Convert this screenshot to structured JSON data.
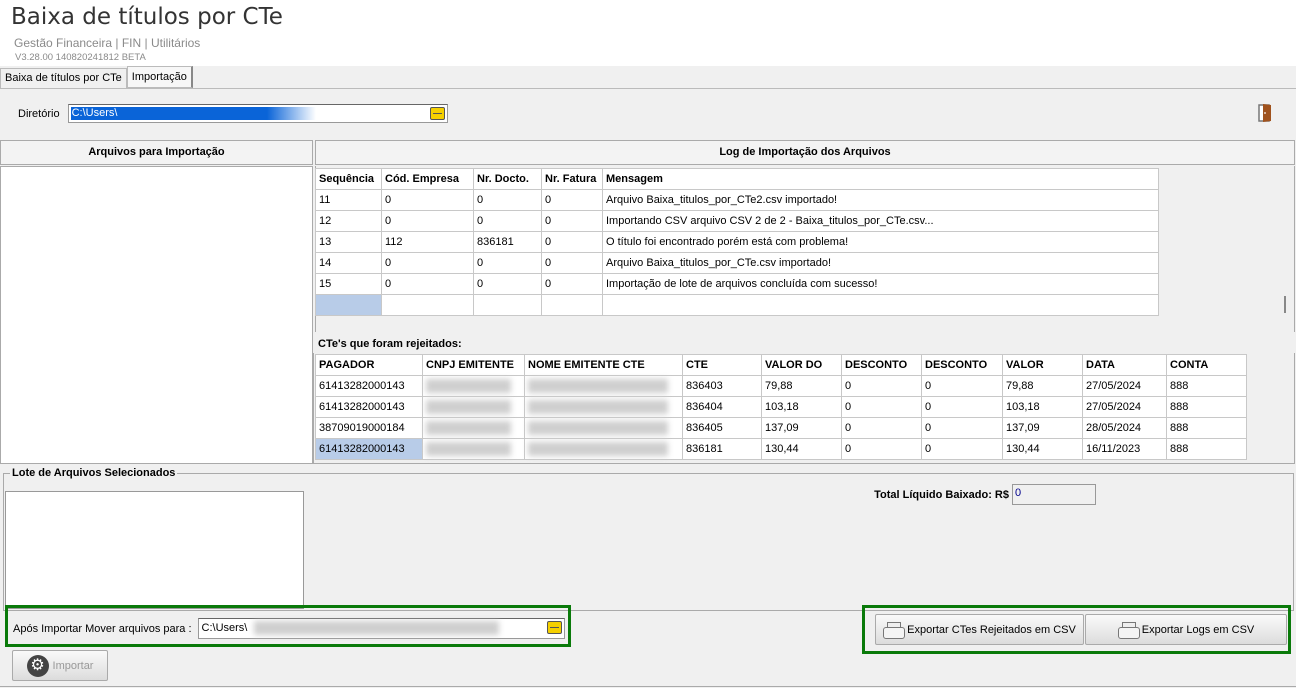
{
  "header": {
    "title": "Baixa de títulos por CTe",
    "subtitle": "Gestão Financeira | FIN | Utilitários",
    "version": "V3.28.00 140820241812 BETA"
  },
  "tabs": [
    {
      "label": "Baixa de títulos por CTe"
    },
    {
      "label": "Importação",
      "active": true
    }
  ],
  "directory": {
    "label": "Diretório",
    "value": "C:\\Users\\"
  },
  "panels": {
    "files_title": "Arquivos para Importação",
    "log_title": "Log de Importação dos Arquivos"
  },
  "log": {
    "columns": [
      "Sequência",
      "Cód. Empresa",
      "Nr. Docto.",
      "Nr. Fatura",
      "Mensagem"
    ],
    "rows": [
      [
        "11",
        "0",
        "0",
        "0",
        "Arquivo Baixa_titulos_por_CTe2.csv importado!"
      ],
      [
        "12",
        "0",
        "0",
        "0",
        "Importando CSV arquivo CSV 2 de 2 - Baixa_titulos_por_CTe.csv..."
      ],
      [
        "13",
        "112",
        "836181",
        "0",
        "O título foi encontrado porém está com problema!"
      ],
      [
        "14",
        "0",
        "0",
        "0",
        "Arquivo Baixa_titulos_por_CTe.csv importado!"
      ],
      [
        "15",
        "0",
        "0",
        "0",
        "Importação de lote de arquivos concluída com sucesso!"
      ]
    ]
  },
  "rejected": {
    "label": "CTe's que foram rejeitados:",
    "columns": [
      "PAGADOR",
      "CNPJ EMITENTE",
      "NOME EMITENTE CTE",
      "CTE",
      "VALOR DO",
      "DESCONTO",
      "DESCONTO",
      "VALOR",
      "DATA",
      "CONTA"
    ],
    "rows": [
      [
        "61413282000143",
        "",
        "",
        "836403",
        "79,88",
        "0",
        "0",
        "79,88",
        "27/05/2024",
        "888"
      ],
      [
        "61413282000143",
        "",
        "",
        "836404",
        "103,18",
        "0",
        "0",
        "103,18",
        "27/05/2024",
        "888"
      ],
      [
        "38709019000184",
        "",
        "",
        "836405",
        "137,09",
        "0",
        "0",
        "137,09",
        "28/05/2024",
        "888"
      ],
      [
        "61413282000143",
        "",
        "",
        "836181",
        "130,44",
        "0",
        "0",
        "130,44",
        "16/11/2023",
        "888"
      ]
    ]
  },
  "lote": {
    "title": "Lote de Arquivos Selecionados"
  },
  "total": {
    "label": "Total Líquido Baixado: R$",
    "value": "0"
  },
  "move": {
    "label": "Após Importar Mover arquivos para :",
    "value": "C:\\Users\\"
  },
  "buttons": {
    "export_rejected": "Exportar CTes Rejeitados em CSV",
    "export_logs": "Exportar Logs em CSV",
    "import": "Importar"
  },
  "colors": {
    "highlight_border": "#0a7a0a",
    "selection": "#0a64d8",
    "door": "#a0521d"
  }
}
